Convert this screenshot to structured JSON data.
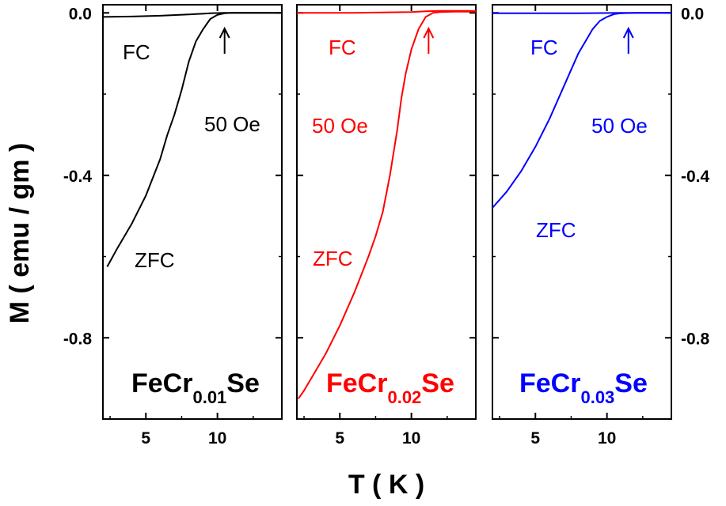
{
  "figure": {
    "ylabel": "M ( emu / gm )",
    "xlabel": "T ( K )"
  },
  "chart_data": [
    {
      "type": "line",
      "color": "#000000",
      "compound": {
        "prefix": "FeCr",
        "sub": "0.01",
        "suffix": "Se"
      },
      "field_label": "50 Oe",
      "fc_label": "FC",
      "zfc_label": "ZFC",
      "arrow_T": 10.5,
      "xlim": [
        2,
        14.5
      ],
      "ylim": [
        -1.0,
        0.02
      ],
      "xticks": [
        5,
        10
      ],
      "xtick_labels": [
        "5",
        "10"
      ],
      "yticks": [
        0.0,
        -0.4,
        -0.8
      ],
      "ytick_labels": [
        "0.0",
        "-0.4",
        "-0.8"
      ],
      "series": [
        {
          "name": "FC",
          "x": [
            2.0,
            4.0,
            6.0,
            8.0,
            9.5,
            10.5,
            12.0,
            14.5
          ],
          "y": [
            -0.01,
            -0.009,
            -0.007,
            -0.004,
            -0.001,
            0.0,
            0.0,
            0.0
          ]
        },
        {
          "name": "ZFC",
          "x": [
            2.3,
            3.0,
            4.0,
            5.0,
            6.0,
            6.5,
            7.0,
            7.5,
            8.0,
            8.5,
            9.0,
            9.5,
            10.0,
            10.5,
            11.0,
            12.0,
            13.0,
            14.5
          ],
          "y": [
            -0.625,
            -0.58,
            -0.52,
            -0.45,
            -0.36,
            -0.3,
            -0.25,
            -0.19,
            -0.12,
            -0.07,
            -0.04,
            -0.015,
            -0.005,
            -0.001,
            0.0,
            0.0,
            0.0,
            0.0
          ]
        }
      ]
    },
    {
      "type": "line",
      "color": "#ff0000",
      "compound": {
        "prefix": "FeCr",
        "sub": "0.02",
        "suffix": "Se"
      },
      "field_label": "50 Oe",
      "fc_label": "FC",
      "zfc_label": "ZFC",
      "arrow_T": 11.2,
      "xlim": [
        2,
        14.5
      ],
      "ylim": [
        -1.0,
        0.02
      ],
      "xticks": [
        5,
        10
      ],
      "xtick_labels": [
        "5",
        "10"
      ],
      "yticks": [
        0.0,
        -0.4,
        -0.8
      ],
      "ytick_labels": [
        "0.0",
        "-0.4",
        "-0.8"
      ],
      "series": [
        {
          "name": "FC",
          "x": [
            2.0,
            6.0,
            10.0,
            11.0,
            12.0,
            14.5
          ],
          "y": [
            0.0,
            0.0,
            0.002,
            0.004,
            0.005,
            0.005
          ]
        },
        {
          "name": "ZFC",
          "x": [
            2.1,
            2.5,
            3.0,
            4.0,
            5.0,
            6.0,
            7.0,
            7.5,
            8.0,
            8.5,
            9.0,
            9.3,
            9.6,
            10.0,
            10.5,
            11.0,
            11.5,
            12.0,
            13.0,
            14.5
          ],
          "y": [
            -0.95,
            -0.93,
            -0.9,
            -0.84,
            -0.77,
            -0.69,
            -0.6,
            -0.55,
            -0.49,
            -0.4,
            -0.29,
            -0.21,
            -0.15,
            -0.09,
            -0.04,
            -0.01,
            0.0,
            0.002,
            0.003,
            0.003
          ]
        }
      ]
    },
    {
      "type": "line",
      "color": "#0000ff",
      "compound": {
        "prefix": "FeCr",
        "sub": "0.03",
        "suffix": "Se"
      },
      "field_label": "50 Oe",
      "fc_label": "FC",
      "zfc_label": "ZFC",
      "arrow_T": 11.5,
      "xlim": [
        2,
        14.5
      ],
      "ylim": [
        -1.0,
        0.02
      ],
      "xticks": [
        5,
        10
      ],
      "xtick_labels": [
        "5",
        "10"
      ],
      "yticks": [
        0.0,
        -0.4,
        -0.8
      ],
      "ytick_labels": [
        "0.0",
        "-0.4",
        "-0.8"
      ],
      "series": [
        {
          "name": "FC",
          "x": [
            2.0,
            8.0,
            11.0,
            14.5
          ],
          "y": [
            -0.001,
            -0.001,
            0.0,
            0.0
          ]
        },
        {
          "name": "ZFC",
          "x": [
            2.0,
            3.0,
            4.0,
            5.0,
            6.0,
            7.0,
            7.5,
            8.0,
            8.5,
            9.0,
            9.5,
            10.0,
            10.5,
            11.0,
            12.0,
            13.0,
            14.5
          ],
          "y": [
            -0.48,
            -0.44,
            -0.39,
            -0.33,
            -0.26,
            -0.18,
            -0.14,
            -0.1,
            -0.07,
            -0.04,
            -0.02,
            -0.01,
            -0.003,
            -0.001,
            0.0,
            0.0,
            0.0
          ]
        }
      ]
    }
  ]
}
